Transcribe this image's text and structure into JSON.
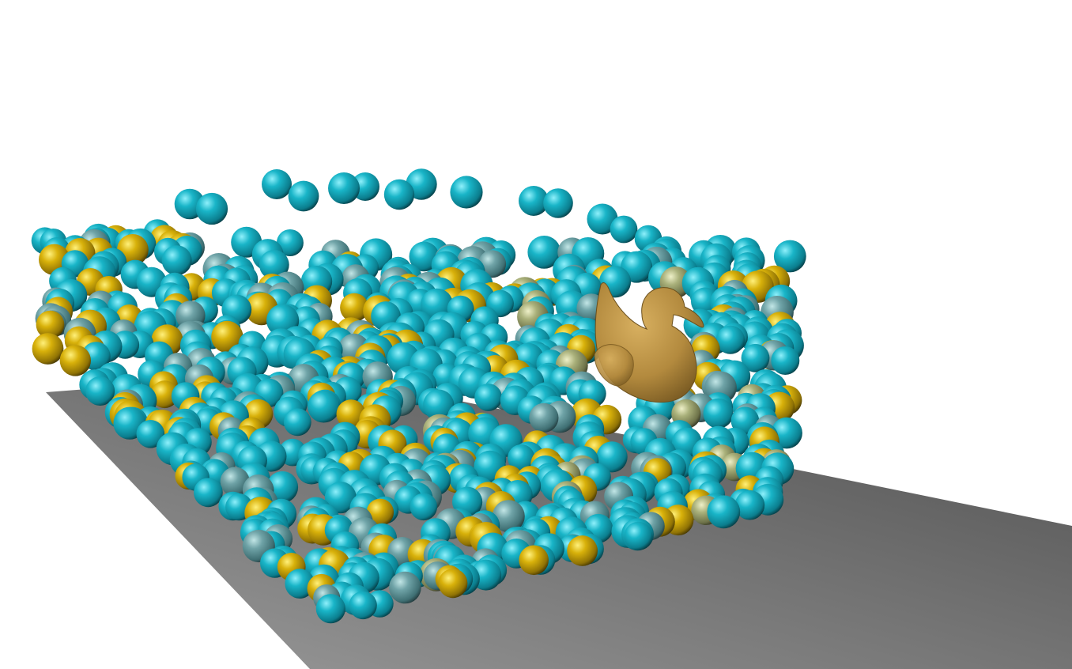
{
  "scene": {
    "type": "3d-particle-fluid-simulation-render",
    "background_color": "#ffffff",
    "ground_plane_color_near": "#9a9a9a",
    "ground_plane_color_far": "#4f4f4f",
    "particle_colors": {
      "cyan": "#1aa6b8",
      "teal_gray": "#6fa3a7",
      "yellow": "#d8b10a",
      "olive_pale": "#a9b07a"
    },
    "rigid_body_object": {
      "shape": "rubber-duck",
      "color": "#b38a3e"
    }
  }
}
